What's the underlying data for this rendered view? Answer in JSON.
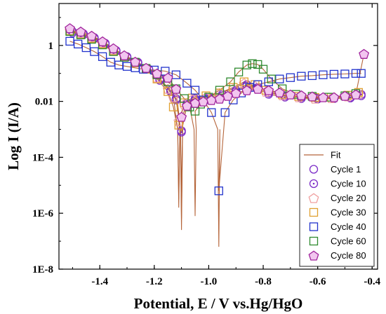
{
  "chart_data": {
    "type": "scatter",
    "xlabel": "Potential, E / V vs.Hg/HgO",
    "ylabel": "Log I (I/A)",
    "xlim": [
      -1.55,
      -0.38
    ],
    "ylim_log10": [
      -8,
      1.5
    ],
    "x_ticks": [
      {
        "value": -1.4,
        "label": "-1.4"
      },
      {
        "value": -1.2,
        "label": "-1.2"
      },
      {
        "value": -1.0,
        "label": "-1.0"
      },
      {
        "value": -0.8,
        "label": "-0.8"
      },
      {
        "value": -0.6,
        "label": "-0.6"
      },
      {
        "value": -0.4,
        "label": "-0.4"
      }
    ],
    "y_ticks": [
      {
        "log10": 0,
        "label": "1"
      },
      {
        "log10": -2,
        "label": "0.01"
      },
      {
        "log10": -4,
        "label": "1E-4"
      },
      {
        "log10": -6,
        "label": "1E-6"
      },
      {
        "log10": -8,
        "label": "1E-8"
      }
    ],
    "legend_position": "bottom-right",
    "fit": {
      "name": "Fit",
      "color": "#b5653a"
    },
    "series": [
      {
        "name": "Cycle 1",
        "marker": "circle",
        "color": "#7b2cc7",
        "ecorr": -1.1,
        "min_log": -6.2,
        "points": [
          [
            -1.5,
            0.45
          ],
          [
            -1.46,
            0.38
          ],
          [
            -1.42,
            0.25
          ],
          [
            -1.38,
            0.05
          ],
          [
            -1.34,
            -0.2
          ],
          [
            -1.3,
            -0.42
          ],
          [
            -1.26,
            -0.62
          ],
          [
            -1.22,
            -0.85
          ],
          [
            -1.18,
            -1.2
          ],
          [
            -1.14,
            -1.6
          ],
          [
            -1.12,
            -1.9
          ],
          [
            -1.1,
            -3.05
          ],
          [
            -1.08,
            -2.05
          ],
          [
            -1.05,
            -1.9
          ],
          [
            -1.0,
            -1.85
          ],
          [
            -0.95,
            -1.75
          ],
          [
            -0.9,
            -1.6
          ],
          [
            -0.86,
            -1.4
          ],
          [
            -0.82,
            -1.5
          ],
          [
            -0.78,
            -1.7
          ],
          [
            -0.72,
            -1.8
          ],
          [
            -0.66,
            -1.85
          ],
          [
            -0.6,
            -1.88
          ],
          [
            -0.54,
            -1.9
          ],
          [
            -0.48,
            -1.88
          ],
          [
            -0.44,
            -1.8
          ]
        ]
      },
      {
        "name": "Cycle 10",
        "marker": "circle-dot",
        "color": "#7b2cc7",
        "ecorr": -1.1,
        "min_log": -6.6,
        "points": [
          [
            -1.5,
            0.5
          ],
          [
            -1.46,
            0.42
          ],
          [
            -1.42,
            0.28
          ],
          [
            -1.38,
            0.08
          ],
          [
            -1.34,
            -0.18
          ],
          [
            -1.3,
            -0.4
          ],
          [
            -1.26,
            -0.6
          ],
          [
            -1.22,
            -0.85
          ],
          [
            -1.18,
            -1.25
          ],
          [
            -1.14,
            -1.65
          ],
          [
            -1.12,
            -1.95
          ],
          [
            -1.1,
            -3.1
          ],
          [
            -1.08,
            -2.1
          ],
          [
            -1.05,
            -1.95
          ],
          [
            -1.0,
            -1.9
          ],
          [
            -0.95,
            -1.8
          ],
          [
            -0.9,
            -1.65
          ],
          [
            -0.86,
            -1.45
          ],
          [
            -0.82,
            -1.55
          ],
          [
            -0.78,
            -1.75
          ],
          [
            -0.72,
            -1.85
          ],
          [
            -0.66,
            -1.9
          ],
          [
            -0.6,
            -1.92
          ],
          [
            -0.54,
            -1.9
          ],
          [
            -0.48,
            -1.85
          ],
          [
            -0.44,
            -1.75
          ]
        ]
      },
      {
        "name": "Cycle 20",
        "marker": "pentagon",
        "color": "#f0a0a0",
        "ecorr": -1.11,
        "min_log": -5.5,
        "points": [
          [
            -1.51,
            0.55
          ],
          [
            -1.47,
            0.45
          ],
          [
            -1.43,
            0.3
          ],
          [
            -1.39,
            0.1
          ],
          [
            -1.35,
            -0.15
          ],
          [
            -1.31,
            -0.38
          ],
          [
            -1.27,
            -0.58
          ],
          [
            -1.23,
            -0.82
          ],
          [
            -1.19,
            -1.15
          ],
          [
            -1.15,
            -1.55
          ],
          [
            -1.13,
            -1.85
          ],
          [
            -1.11,
            -2.7
          ],
          [
            -1.09,
            -2.1
          ],
          [
            -1.06,
            -1.92
          ],
          [
            -1.01,
            -1.85
          ],
          [
            -0.96,
            -1.7
          ],
          [
            -0.91,
            -1.55
          ],
          [
            -0.87,
            -1.35
          ],
          [
            -0.83,
            -1.45
          ],
          [
            -0.79,
            -1.65
          ],
          [
            -0.73,
            -1.78
          ],
          [
            -0.67,
            -1.85
          ],
          [
            -0.61,
            -1.9
          ],
          [
            -0.55,
            -1.88
          ],
          [
            -0.49,
            -1.82
          ],
          [
            -0.45,
            -1.72
          ]
        ]
      },
      {
        "name": "Cycle 30",
        "marker": "square",
        "color": "#e0a030",
        "ecorr": -1.11,
        "min_log": -5.8,
        "points": [
          [
            -1.51,
            0.52
          ],
          [
            -1.47,
            0.4
          ],
          [
            -1.43,
            0.25
          ],
          [
            -1.39,
            0.05
          ],
          [
            -1.35,
            -0.2
          ],
          [
            -1.31,
            -0.42
          ],
          [
            -1.27,
            -0.62
          ],
          [
            -1.23,
            -0.85
          ],
          [
            -1.19,
            -1.2
          ],
          [
            -1.15,
            -1.65
          ],
          [
            -1.13,
            -2.2
          ],
          [
            -1.11,
            -2.85
          ],
          [
            -1.09,
            -2.05
          ],
          [
            -1.06,
            -1.88
          ],
          [
            -1.01,
            -1.8
          ],
          [
            -0.96,
            -1.7
          ],
          [
            -0.91,
            -1.5
          ],
          [
            -0.87,
            -1.3
          ],
          [
            -0.83,
            -1.4
          ],
          [
            -0.79,
            -1.6
          ],
          [
            -0.73,
            -1.75
          ],
          [
            -0.67,
            -1.82
          ],
          [
            -0.61,
            -1.86
          ],
          [
            -0.55,
            -1.85
          ],
          [
            -0.49,
            -1.78
          ],
          [
            -0.45,
            -1.68
          ]
        ]
      },
      {
        "name": "Cycle 40",
        "marker": "square",
        "color": "#2233cc",
        "ecorr": -0.963,
        "min_log": -7.2,
        "points": [
          [
            -1.51,
            0.15
          ],
          [
            -1.48,
            0.05
          ],
          [
            -1.45,
            -0.08
          ],
          [
            -1.42,
            -0.22
          ],
          [
            -1.39,
            -0.4
          ],
          [
            -1.36,
            -0.6
          ],
          [
            -1.33,
            -0.7
          ],
          [
            -1.3,
            -0.75
          ],
          [
            -1.27,
            -0.8
          ],
          [
            -1.24,
            -0.85
          ],
          [
            -1.2,
            -0.88
          ],
          [
            -1.16,
            -0.92
          ],
          [
            -1.12,
            -1.05
          ],
          [
            -1.08,
            -1.35
          ],
          [
            -1.05,
            -1.6
          ],
          [
            -1.02,
            -1.95
          ],
          [
            -0.99,
            -2.4
          ],
          [
            -0.963,
            -5.2
          ],
          [
            -0.94,
            -2.4
          ],
          [
            -0.91,
            -1.95
          ],
          [
            -0.88,
            -1.7
          ],
          [
            -0.85,
            -1.5
          ],
          [
            -0.82,
            -1.4
          ],
          [
            -0.78,
            -1.3
          ],
          [
            -0.74,
            -1.2
          ],
          [
            -0.7,
            -1.15
          ],
          [
            -0.66,
            -1.1
          ],
          [
            -0.62,
            -1.08
          ],
          [
            -0.58,
            -1.05
          ],
          [
            -0.54,
            -1.03
          ],
          [
            -0.5,
            -1.02
          ],
          [
            -0.46,
            -1.0
          ],
          [
            -0.44,
            -1.0
          ]
        ]
      },
      {
        "name": "Cycle 60",
        "marker": "square",
        "color": "#2f8a2f",
        "ecorr": -1.05,
        "min_log": -6.1,
        "points": [
          [
            -1.51,
            0.5
          ],
          [
            -1.47,
            0.38
          ],
          [
            -1.43,
            0.22
          ],
          [
            -1.39,
            0.02
          ],
          [
            -1.35,
            -0.22
          ],
          [
            -1.31,
            -0.42
          ],
          [
            -1.27,
            -0.6
          ],
          [
            -1.23,
            -0.82
          ],
          [
            -1.19,
            -1.05
          ],
          [
            -1.15,
            -1.3
          ],
          [
            -1.12,
            -1.55
          ],
          [
            -1.09,
            -1.9
          ],
          [
            -1.07,
            -2.2
          ],
          [
            -1.05,
            -2.35
          ],
          [
            -1.03,
            -2.1
          ],
          [
            -1.0,
            -1.85
          ],
          [
            -0.96,
            -1.6
          ],
          [
            -0.92,
            -1.3
          ],
          [
            -0.89,
            -0.95
          ],
          [
            -0.86,
            -0.7
          ],
          [
            -0.84,
            -0.65
          ],
          [
            -0.82,
            -0.68
          ],
          [
            -0.8,
            -0.85
          ],
          [
            -0.77,
            -1.2
          ],
          [
            -0.73,
            -1.55
          ],
          [
            -0.68,
            -1.75
          ],
          [
            -0.62,
            -1.82
          ],
          [
            -0.56,
            -1.85
          ],
          [
            -0.5,
            -1.8
          ],
          [
            -0.46,
            -1.72
          ]
        ]
      },
      {
        "name": "Cycle 80",
        "marker": "pentagon",
        "color": "#a0249c",
        "fill": "#f2c6ef",
        "ecorr": -1.1,
        "min_log": -5.2,
        "points": [
          [
            -1.51,
            0.62
          ],
          [
            -1.47,
            0.5
          ],
          [
            -1.43,
            0.35
          ],
          [
            -1.39,
            0.15
          ],
          [
            -1.35,
            -0.1
          ],
          [
            -1.31,
            -0.35
          ],
          [
            -1.27,
            -0.58
          ],
          [
            -1.23,
            -0.8
          ],
          [
            -1.19,
            -1.0
          ],
          [
            -1.15,
            -1.15
          ],
          [
            -1.12,
            -1.55
          ],
          [
            -1.1,
            -2.55
          ],
          [
            -1.08,
            -2.15
          ],
          [
            -1.05,
            -2.05
          ],
          [
            -1.02,
            -2.0
          ],
          [
            -0.99,
            -1.95
          ],
          [
            -0.96,
            -1.9
          ],
          [
            -0.93,
            -1.8
          ],
          [
            -0.9,
            -1.7
          ],
          [
            -0.86,
            -1.6
          ],
          [
            -0.82,
            -1.55
          ],
          [
            -0.78,
            -1.6
          ],
          [
            -0.74,
            -1.68
          ],
          [
            -0.7,
            -1.75
          ],
          [
            -0.66,
            -1.78
          ],
          [
            -0.62,
            -1.82
          ],
          [
            -0.58,
            -1.85
          ],
          [
            -0.54,
            -1.85
          ],
          [
            -0.5,
            -1.8
          ],
          [
            -0.46,
            -1.75
          ],
          [
            -0.43,
            -0.3
          ]
        ]
      }
    ]
  }
}
